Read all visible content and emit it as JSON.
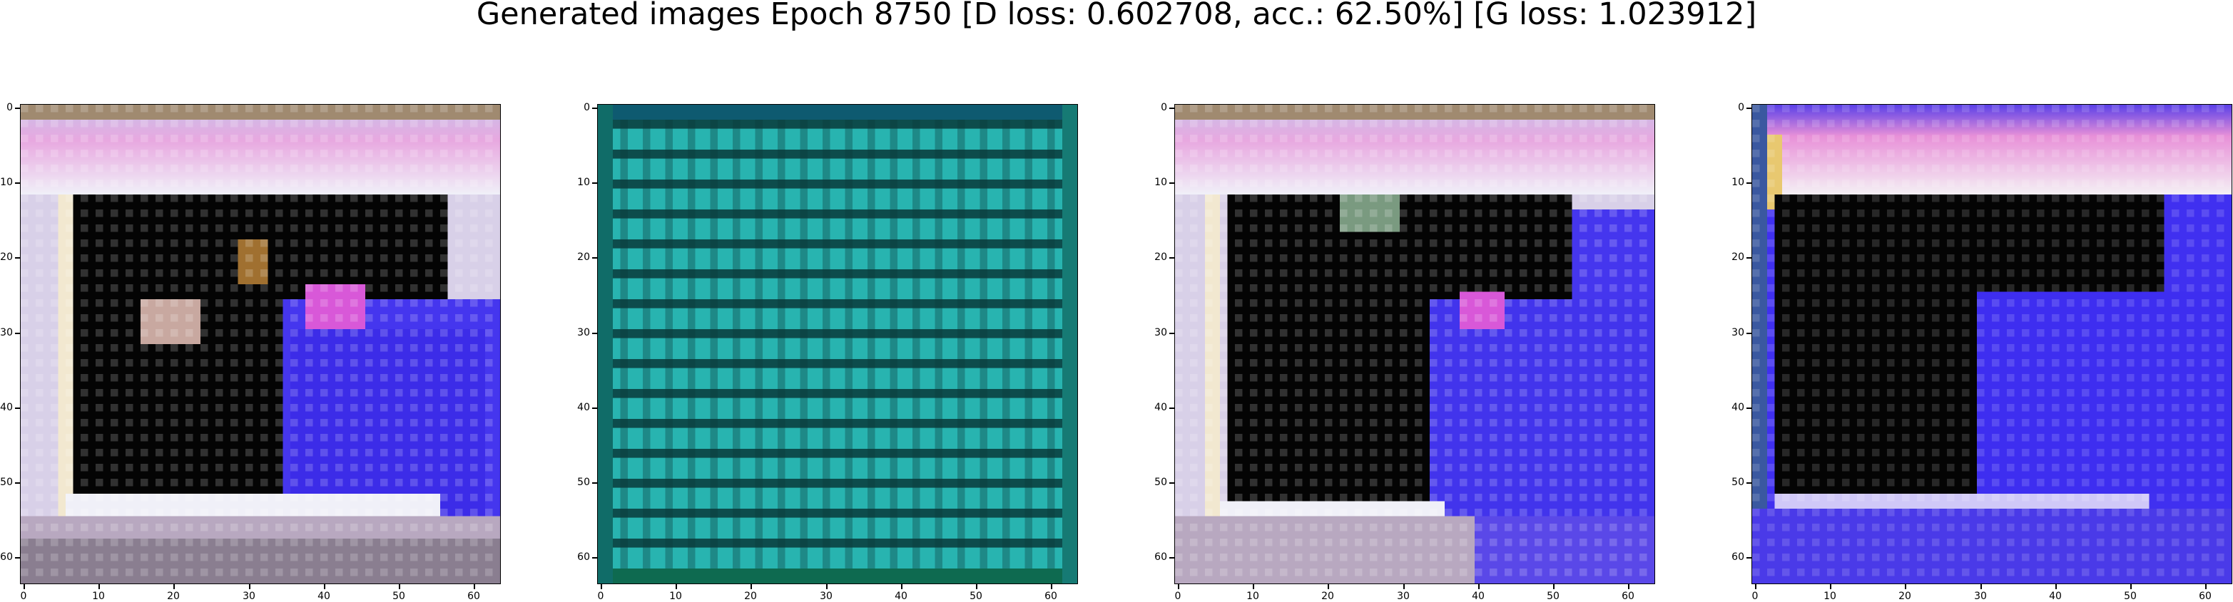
{
  "title": "Generated images Epoch 8750 [D loss: 0.602708, acc.: 62.50%] [G loss: 1.023912]",
  "axis_ticks": {
    "x": [
      "0",
      "10",
      "20",
      "30",
      "40",
      "50",
      "60"
    ],
    "y": [
      "0",
      "10",
      "20",
      "30",
      "40",
      "50",
      "60"
    ]
  },
  "panels": [
    {
      "name": "generated-image-1",
      "style": "framed-dark-blob",
      "colors": {
        "frame": "#e8dfe8",
        "dark": "#050505",
        "blue": "#4a3cf0",
        "pink": "#e070e0"
      }
    },
    {
      "name": "generated-image-2",
      "style": "teal-stripes",
      "colors": {
        "base": "#2ab8b0",
        "stripe": "#0c4a4a",
        "edge": "#1a6a78"
      }
    },
    {
      "name": "generated-image-3",
      "style": "framed-dark-blob",
      "colors": {
        "frame": "#e8dfe8",
        "dark": "#050505",
        "blue": "#4a3cf0",
        "pink": "#e070e0"
      }
    },
    {
      "name": "generated-image-4",
      "style": "blue-dark-blob",
      "colors": {
        "top": "#e89ad8",
        "dark": "#050505",
        "blue": "#3f2ef2",
        "yellow": "#e8d070"
      }
    }
  ]
}
